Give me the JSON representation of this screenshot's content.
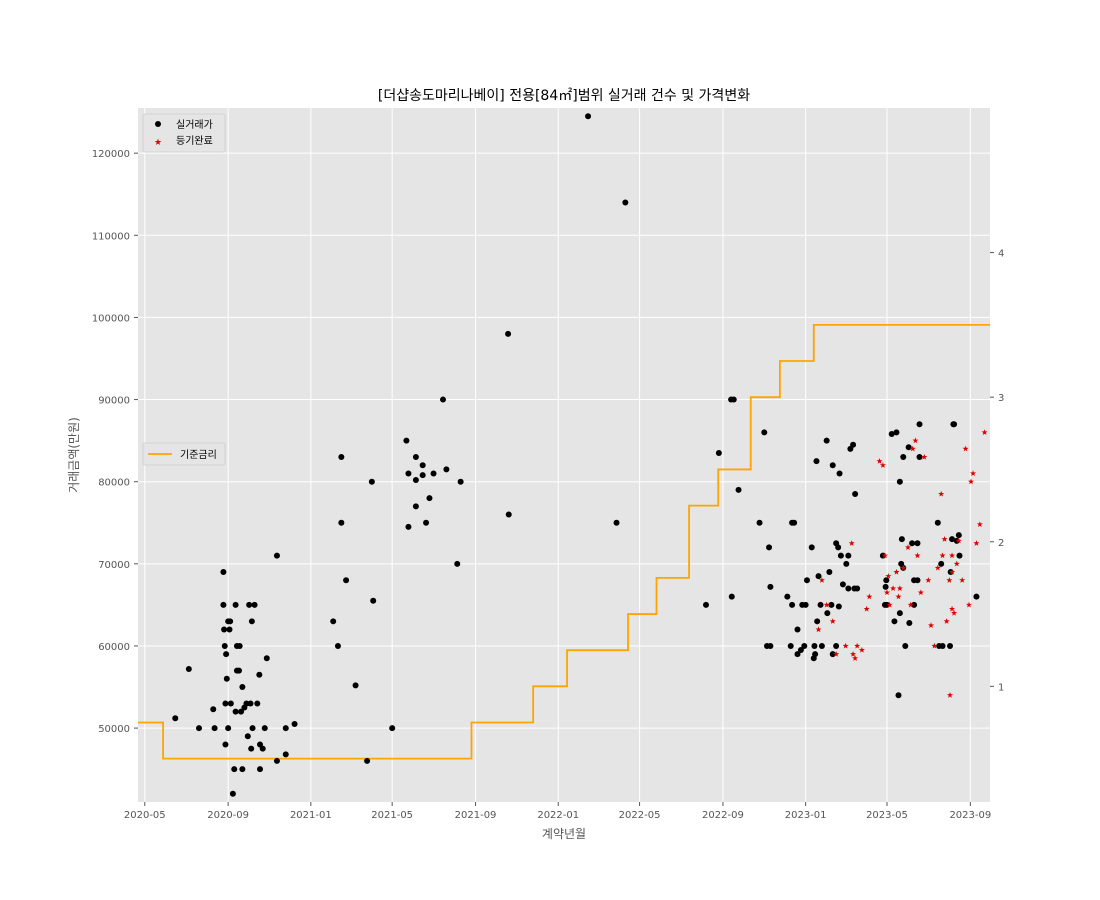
{
  "chart_data": {
    "type": "scatter",
    "title": "[더샵송도마리나베이] 전용[84㎡]범위 실거래 건수 및 가격변화",
    "xlabel": "계약년월",
    "ylabel": "거래금액(만원)",
    "x_range": [
      "2020-04-21",
      "2023-09-30"
    ],
    "ylim": [
      41000,
      125500
    ],
    "y2lim": [
      0.2,
      5.0
    ],
    "grid": true,
    "x_ticks": [
      "2020-05",
      "2020-09",
      "2021-01",
      "2021-05",
      "2021-09",
      "2022-01",
      "2022-05",
      "2022-09",
      "2023-01",
      "2023-05",
      "2023-09"
    ],
    "y_ticks": [
      50000,
      60000,
      70000,
      80000,
      90000,
      100000,
      110000,
      120000
    ],
    "y2_ticks": [
      1,
      2,
      3,
      4
    ],
    "colors": {
      "trade": "#000000",
      "registered": "#e00000",
      "rate": "#ffa500",
      "plot_bg": "#e5e5e5",
      "grid": "#ffffff"
    },
    "legends": {
      "top_left": [
        "실거래가",
        "등기완료"
      ],
      "middle_left": [
        "기준금리"
      ]
    },
    "series": [
      {
        "name": "실거래가",
        "marker": "circle",
        "points": [
          [
            "2020-06-15",
            51200
          ],
          [
            "2020-07-05",
            57200
          ],
          [
            "2020-07-20",
            50000
          ],
          [
            "2020-08-10",
            52300
          ],
          [
            "2020-08-12",
            50000
          ],
          [
            "2020-08-25",
            65000
          ],
          [
            "2020-08-25",
            69000
          ],
          [
            "2020-08-26",
            62000
          ],
          [
            "2020-08-27",
            60000
          ],
          [
            "2020-08-28",
            53000
          ],
          [
            "2020-08-28",
            48000
          ],
          [
            "2020-08-29",
            59000
          ],
          [
            "2020-08-30",
            56000
          ],
          [
            "2020-09-01",
            63000
          ],
          [
            "2020-09-01",
            50000
          ],
          [
            "2020-09-03",
            62000
          ],
          [
            "2020-09-04",
            63000
          ],
          [
            "2020-09-05",
            53000
          ],
          [
            "2020-09-08",
            42000
          ],
          [
            "2020-09-10",
            45000
          ],
          [
            "2020-09-12",
            52000
          ],
          [
            "2020-09-12",
            65000
          ],
          [
            "2020-09-14",
            60000
          ],
          [
            "2020-09-14",
            57000
          ],
          [
            "2020-09-17",
            57000
          ],
          [
            "2020-09-18",
            60000
          ],
          [
            "2020-09-20",
            52000
          ],
          [
            "2020-09-22",
            55000
          ],
          [
            "2020-09-22",
            45000
          ],
          [
            "2020-09-25",
            52500
          ],
          [
            "2020-09-28",
            53000
          ],
          [
            "2020-09-30",
            49000
          ],
          [
            "2020-10-02",
            65000
          ],
          [
            "2020-10-04",
            53000
          ],
          [
            "2020-10-05",
            47500
          ],
          [
            "2020-10-06",
            63000
          ],
          [
            "2020-10-07",
            50000
          ],
          [
            "2020-10-10",
            65000
          ],
          [
            "2020-10-14",
            53000
          ],
          [
            "2020-10-17",
            56500
          ],
          [
            "2020-10-18",
            48000
          ],
          [
            "2020-10-18",
            45000
          ],
          [
            "2020-10-22",
            47500
          ],
          [
            "2020-10-25",
            50000
          ],
          [
            "2020-10-28",
            58500
          ],
          [
            "2020-11-12",
            71000
          ],
          [
            "2020-11-12",
            46000
          ],
          [
            "2020-11-25",
            50000
          ],
          [
            "2020-11-25",
            46800
          ],
          [
            "2020-12-08",
            50500
          ],
          [
            "2021-02-03",
            63000
          ],
          [
            "2021-02-10",
            60000
          ],
          [
            "2021-02-15",
            83000
          ],
          [
            "2021-02-15",
            75000
          ],
          [
            "2021-02-22",
            68000
          ],
          [
            "2021-03-08",
            55200
          ],
          [
            "2021-03-25",
            46000
          ],
          [
            "2021-04-01",
            80000
          ],
          [
            "2021-04-03",
            65500
          ],
          [
            "2021-05-01",
            50000
          ],
          [
            "2021-05-22",
            85000
          ],
          [
            "2021-05-25",
            81000
          ],
          [
            "2021-05-25",
            74500
          ],
          [
            "2021-06-05",
            83000
          ],
          [
            "2021-06-05",
            77000
          ],
          [
            "2021-06-05",
            80200
          ],
          [
            "2021-06-15",
            82000
          ],
          [
            "2021-06-15",
            80800
          ],
          [
            "2021-06-20",
            75000
          ],
          [
            "2021-06-25",
            78000
          ],
          [
            "2021-07-01",
            81000
          ],
          [
            "2021-07-15",
            90000
          ],
          [
            "2021-07-20",
            81500
          ],
          [
            "2021-08-05",
            70000
          ],
          [
            "2021-08-10",
            80000
          ],
          [
            "2021-10-19",
            98000
          ],
          [
            "2021-10-20",
            76000
          ],
          [
            "2022-02-14",
            124500
          ],
          [
            "2022-03-28",
            75000
          ],
          [
            "2022-04-10",
            114000
          ],
          [
            "2022-08-07",
            65000
          ],
          [
            "2022-08-26",
            83500
          ],
          [
            "2022-09-13",
            90000
          ],
          [
            "2022-09-14",
            66000
          ],
          [
            "2022-09-17",
            90000
          ],
          [
            "2022-09-24",
            79000
          ],
          [
            "2022-10-25",
            75000
          ],
          [
            "2022-11-01",
            86000
          ],
          [
            "2022-11-05",
            60000
          ],
          [
            "2022-11-08",
            72000
          ],
          [
            "2022-11-10",
            67200
          ],
          [
            "2022-11-10",
            60000
          ],
          [
            "2022-12-05",
            66000
          ],
          [
            "2022-12-10",
            60000
          ],
          [
            "2022-12-12",
            65000
          ],
          [
            "2022-12-12",
            75000
          ],
          [
            "2022-12-15",
            75000
          ],
          [
            "2022-12-20",
            59000
          ],
          [
            "2022-12-20",
            62000
          ],
          [
            "2022-12-25",
            59500
          ],
          [
            "2022-12-27",
            65000
          ],
          [
            "2022-12-30",
            60000
          ],
          [
            "2023-01-01",
            65000
          ],
          [
            "2023-01-03",
            68000
          ],
          [
            "2023-01-10",
            72000
          ],
          [
            "2023-01-13",
            58500
          ],
          [
            "2023-01-14",
            60000
          ],
          [
            "2023-01-15",
            59000
          ],
          [
            "2023-01-17",
            82500
          ],
          [
            "2023-01-18",
            63000
          ],
          [
            "2023-01-20",
            68500
          ],
          [
            "2023-01-23",
            65000
          ],
          [
            "2023-01-25",
            60000
          ],
          [
            "2023-02-01",
            85000
          ],
          [
            "2023-02-02",
            64000
          ],
          [
            "2023-02-05",
            69000
          ],
          [
            "2023-02-08",
            65000
          ],
          [
            "2023-02-10",
            82000
          ],
          [
            "2023-02-10",
            59000
          ],
          [
            "2023-02-15",
            60000
          ],
          [
            "2023-02-15",
            72500
          ],
          [
            "2023-02-18",
            72000
          ],
          [
            "2023-02-19",
            64800
          ],
          [
            "2023-02-20",
            81000
          ],
          [
            "2023-02-22",
            71000
          ],
          [
            "2023-02-25",
            67500
          ],
          [
            "2023-03-02",
            70000
          ],
          [
            "2023-03-05",
            67000
          ],
          [
            "2023-03-05",
            71000
          ],
          [
            "2023-03-08",
            84000
          ],
          [
            "2023-03-12",
            84500
          ],
          [
            "2023-03-14",
            67000
          ],
          [
            "2023-03-15",
            78500
          ],
          [
            "2023-03-18",
            67000
          ],
          [
            "2023-04-25",
            71000
          ],
          [
            "2023-04-28",
            65000
          ],
          [
            "2023-04-29",
            67200
          ],
          [
            "2023-04-30",
            68000
          ],
          [
            "2023-05-01",
            65000
          ],
          [
            "2023-05-08",
            85800
          ],
          [
            "2023-05-12",
            63000
          ],
          [
            "2023-05-15",
            86000
          ],
          [
            "2023-05-18",
            54000
          ],
          [
            "2023-05-20",
            80000
          ],
          [
            "2023-05-20",
            64000
          ],
          [
            "2023-05-22",
            70000
          ],
          [
            "2023-05-23",
            73000
          ],
          [
            "2023-05-25",
            83000
          ],
          [
            "2023-05-25",
            69500
          ],
          [
            "2023-05-28",
            60000
          ],
          [
            "2023-06-02",
            84200
          ],
          [
            "2023-06-03",
            62800
          ],
          [
            "2023-06-07",
            72500
          ],
          [
            "2023-06-10",
            65000
          ],
          [
            "2023-06-10",
            68000
          ],
          [
            "2023-06-15",
            72500
          ],
          [
            "2023-06-15",
            68000
          ],
          [
            "2023-06-18",
            87000
          ],
          [
            "2023-06-18",
            83000
          ],
          [
            "2023-07-15",
            75000
          ],
          [
            "2023-07-17",
            60000
          ],
          [
            "2023-07-20",
            70000
          ],
          [
            "2023-07-22",
            60000
          ],
          [
            "2023-08-02",
            60000
          ],
          [
            "2023-08-03",
            69000
          ],
          [
            "2023-08-05",
            73000
          ],
          [
            "2023-08-07",
            87000
          ],
          [
            "2023-08-08",
            87000
          ],
          [
            "2023-08-12",
            72800
          ],
          [
            "2023-08-15",
            73500
          ],
          [
            "2023-08-16",
            71000
          ],
          [
            "2023-09-10",
            66000
          ]
        ]
      },
      {
        "name": "등기완료",
        "marker": "star",
        "points": [
          [
            "2023-01-20",
            62000
          ],
          [
            "2023-01-25",
            68000
          ],
          [
            "2023-02-01",
            65000
          ],
          [
            "2023-02-10",
            63000
          ],
          [
            "2023-02-15",
            59000
          ],
          [
            "2023-03-01",
            60000
          ],
          [
            "2023-03-10",
            72500
          ],
          [
            "2023-03-12",
            59000
          ],
          [
            "2023-03-15",
            58500
          ],
          [
            "2023-03-18",
            60000
          ],
          [
            "2023-03-25",
            59500
          ],
          [
            "2023-04-01",
            64500
          ],
          [
            "2023-04-05",
            66000
          ],
          [
            "2023-04-20",
            82500
          ],
          [
            "2023-04-25",
            82000
          ],
          [
            "2023-04-28",
            71000
          ],
          [
            "2023-05-01",
            66500
          ],
          [
            "2023-05-03",
            68500
          ],
          [
            "2023-05-05",
            65000
          ],
          [
            "2023-05-10",
            67000
          ],
          [
            "2023-05-15",
            69000
          ],
          [
            "2023-05-18",
            66000
          ],
          [
            "2023-05-20",
            67000
          ],
          [
            "2023-05-25",
            69500
          ],
          [
            "2023-06-01",
            72000
          ],
          [
            "2023-06-05",
            65000
          ],
          [
            "2023-06-08",
            84000
          ],
          [
            "2023-06-12",
            85000
          ],
          [
            "2023-06-15",
            71000
          ],
          [
            "2023-06-20",
            66500
          ],
          [
            "2023-06-25",
            83000
          ],
          [
            "2023-07-01",
            68000
          ],
          [
            "2023-07-05",
            62500
          ],
          [
            "2023-07-10",
            60000
          ],
          [
            "2023-07-15",
            69500
          ],
          [
            "2023-07-20",
            78500
          ],
          [
            "2023-07-22",
            71000
          ],
          [
            "2023-07-25",
            73000
          ],
          [
            "2023-07-28",
            63000
          ],
          [
            "2023-08-01",
            68000
          ],
          [
            "2023-08-02",
            54000
          ],
          [
            "2023-08-05",
            69000
          ],
          [
            "2023-08-05",
            71000
          ],
          [
            "2023-08-05",
            64500
          ],
          [
            "2023-08-08",
            64000
          ],
          [
            "2023-08-12",
            70000
          ],
          [
            "2023-08-15",
            72800
          ],
          [
            "2023-08-20",
            68000
          ],
          [
            "2023-08-25",
            84000
          ],
          [
            "2023-08-30",
            65000
          ],
          [
            "2023-09-02",
            80000
          ],
          [
            "2023-09-05",
            81000
          ],
          [
            "2023-09-10",
            72500
          ],
          [
            "2023-09-15",
            74800
          ],
          [
            "2023-09-22",
            86000
          ]
        ]
      },
      {
        "name": "기준금리",
        "type": "step",
        "axis": "right",
        "points": [
          [
            "2020-04-21",
            0.75
          ],
          [
            "2020-05-28",
            0.5
          ],
          [
            "2021-08-26",
            0.75
          ],
          [
            "2021-11-25",
            1.0
          ],
          [
            "2022-01-14",
            1.25
          ],
          [
            "2022-04-14",
            1.5
          ],
          [
            "2022-05-26",
            1.75
          ],
          [
            "2022-07-13",
            2.25
          ],
          [
            "2022-08-25",
            2.5
          ],
          [
            "2022-10-12",
            3.0
          ],
          [
            "2022-11-24",
            3.25
          ],
          [
            "2023-01-13",
            3.5
          ],
          [
            "2023-09-30",
            3.5
          ]
        ]
      }
    ]
  }
}
